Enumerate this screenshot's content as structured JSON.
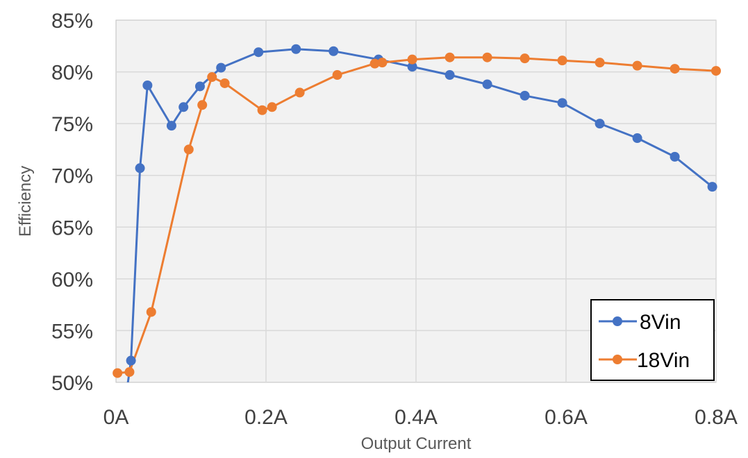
{
  "chart_data": {
    "type": "line",
    "xlabel": "Output Current",
    "ylabel": "Efficiency",
    "xlim": [
      0,
      0.8
    ],
    "ylim": [
      50,
      85
    ],
    "x_ticks": [
      {
        "value": 0,
        "label": "0A"
      },
      {
        "value": 0.2,
        "label": "0.2A"
      },
      {
        "value": 0.4,
        "label": "0.4A"
      },
      {
        "value": 0.6,
        "label": "0.6A"
      },
      {
        "value": 0.8,
        "label": "0.8A"
      }
    ],
    "y_ticks": [
      {
        "value": 50,
        "label": "50%"
      },
      {
        "value": 55,
        "label": "55%"
      },
      {
        "value": 60,
        "label": "60%"
      },
      {
        "value": 65,
        "label": "65%"
      },
      {
        "value": 70,
        "label": "70%"
      },
      {
        "value": 75,
        "label": "75%"
      },
      {
        "value": 80,
        "label": "80%"
      },
      {
        "value": 85,
        "label": "85%"
      }
    ],
    "grid": true,
    "legend_position": "bottom-right",
    "series": [
      {
        "name": "8Vin",
        "color": "#4472C4",
        "points": [
          {
            "x": 0.012,
            "y": 48.0,
            "marker": false
          },
          {
            "x": 0.02,
            "y": 52.1
          },
          {
            "x": 0.032,
            "y": 70.7
          },
          {
            "x": 0.042,
            "y": 78.7
          },
          {
            "x": 0.074,
            "y": 74.8
          },
          {
            "x": 0.09,
            "y": 76.6
          },
          {
            "x": 0.112,
            "y": 78.6
          },
          {
            "x": 0.14,
            "y": 80.4
          },
          {
            "x": 0.19,
            "y": 81.9
          },
          {
            "x": 0.24,
            "y": 82.2
          },
          {
            "x": 0.29,
            "y": 82.0
          },
          {
            "x": 0.35,
            "y": 81.2
          },
          {
            "x": 0.395,
            "y": 80.5
          },
          {
            "x": 0.445,
            "y": 79.7
          },
          {
            "x": 0.495,
            "y": 78.8
          },
          {
            "x": 0.545,
            "y": 77.7
          },
          {
            "x": 0.595,
            "y": 77.0
          },
          {
            "x": 0.645,
            "y": 75.0
          },
          {
            "x": 0.695,
            "y": 73.6
          },
          {
            "x": 0.745,
            "y": 71.8
          },
          {
            "x": 0.795,
            "y": 68.9
          }
        ]
      },
      {
        "name": "18Vin",
        "color": "#ED7D31",
        "points": [
          {
            "x": 0.002,
            "y": 50.9
          },
          {
            "x": 0.018,
            "y": 51.0
          },
          {
            "x": 0.047,
            "y": 56.8
          },
          {
            "x": 0.097,
            "y": 72.5
          },
          {
            "x": 0.115,
            "y": 76.8
          },
          {
            "x": 0.128,
            "y": 79.5
          },
          {
            "x": 0.145,
            "y": 78.9
          },
          {
            "x": 0.195,
            "y": 76.3
          },
          {
            "x": 0.208,
            "y": 76.6
          },
          {
            "x": 0.245,
            "y": 78.0
          },
          {
            "x": 0.295,
            "y": 79.7
          },
          {
            "x": 0.345,
            "y": 80.8
          },
          {
            "x": 0.355,
            "y": 80.9
          },
          {
            "x": 0.395,
            "y": 81.2
          },
          {
            "x": 0.445,
            "y": 81.4
          },
          {
            "x": 0.495,
            "y": 81.4
          },
          {
            "x": 0.545,
            "y": 81.3
          },
          {
            "x": 0.595,
            "y": 81.1
          },
          {
            "x": 0.645,
            "y": 80.9
          },
          {
            "x": 0.695,
            "y": 80.6
          },
          {
            "x": 0.745,
            "y": 80.3
          },
          {
            "x": 0.8,
            "y": 80.1
          }
        ]
      }
    ]
  }
}
